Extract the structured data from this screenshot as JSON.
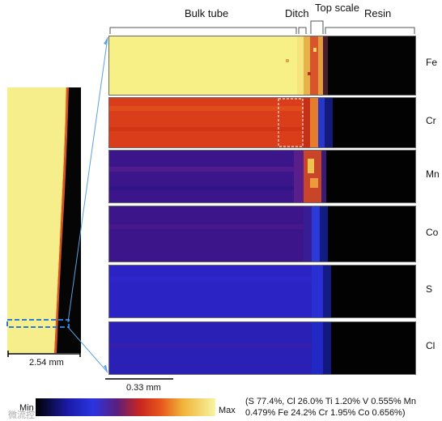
{
  "regions": {
    "bulk_tube": "Bulk tube",
    "ditch": "Ditch",
    "top_scale": "Top scale",
    "resin": "Resin"
  },
  "elements": [
    "Fe",
    "Cr",
    "Mn",
    "Co",
    "S",
    "Cl"
  ],
  "overview_scale": "2.54 mm",
  "map_scale": "0.33 mm",
  "colorbar": {
    "min": "Min",
    "max": "Max"
  },
  "composition": {
    "line1": "(S 77.4%, Cl 26.0% Ti 1.20%   V 0.555% Mn",
    "line2": "0.479%  Fe 24.2%  Cr 1.95% Co 0.656%)"
  },
  "watermark": "微流控"
}
